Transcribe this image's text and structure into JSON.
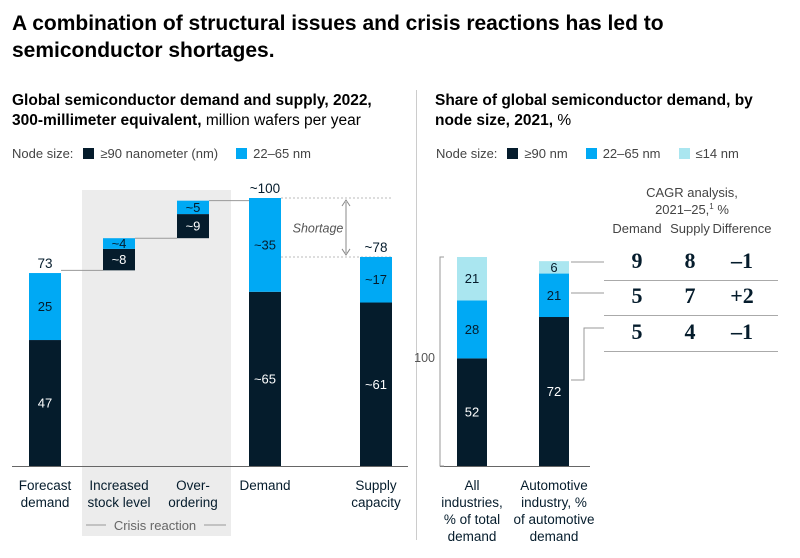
{
  "title": "A combination of structural issues and crisis reactions has led to semiconductor shortages.",
  "colors": {
    "dark": "#051c2c",
    "blue": "#00a9f4",
    "light": "#aae6f0",
    "shade": "#ececec",
    "gray": "#9a9a9a"
  },
  "chart_data": [
    {
      "type": "waterfall",
      "title_bold": "Global semiconductor demand and supply, 2022, 300-millimeter equivalent,",
      "title_light": " million wafers per year",
      "legend_label": "Node size:",
      "series": [
        {
          "name": "≥90 nanometer (nm)",
          "color": "#051c2c"
        },
        {
          "name": "22–65 nm",
          "color": "#00a9f4"
        }
      ],
      "ylim": [
        0,
        100
      ],
      "bars": [
        {
          "category": "Forecast demand",
          "base": 0,
          "segments": [
            {
              "value": 47,
              "label": "47"
            },
            {
              "value": 25,
              "label": "25"
            }
          ],
          "total_label": "73"
        },
        {
          "category": "Increased stock level",
          "base": 73,
          "segments": [
            {
              "value": 8,
              "label": "~8"
            },
            {
              "value": 4,
              "label": "~4"
            }
          ],
          "total_label": ""
        },
        {
          "category": "Over-ordering",
          "base": 85,
          "segments": [
            {
              "value": 9,
              "label": "~9"
            },
            {
              "value": 5,
              "label": "~5"
            }
          ],
          "total_label": ""
        },
        {
          "category": "Demand",
          "base": 0,
          "segments": [
            {
              "value": 65,
              "label": "~65"
            },
            {
              "value": 35,
              "label": "~35"
            }
          ],
          "total_label": "~100"
        },
        {
          "category": "Supply capacity",
          "base": 0,
          "segments": [
            {
              "value": 61,
              "label": "~61"
            },
            {
              "value": 17,
              "label": "~17"
            }
          ],
          "total_label": "~78"
        }
      ],
      "category_labels": [
        [
          "Forecast",
          "demand"
        ],
        [
          "Increased",
          "stock level"
        ],
        [
          "Over-",
          "ordering"
        ],
        [
          "Demand"
        ],
        [
          "Supply",
          "capacity"
        ]
      ],
      "crisis_label": "Crisis reaction",
      "shortage_label": "Shortage"
    },
    {
      "type": "stacked-bar",
      "title_bold": "Share of global semiconductor demand, by node size, 2021,",
      "title_light": " %",
      "legend_label": "Node size:",
      "series": [
        {
          "name": "≥90 nm",
          "color": "#051c2c",
          "values": [
            52,
            72
          ]
        },
        {
          "name": "22–65 nm",
          "color": "#00a9f4",
          "values": [
            28,
            21
          ]
        },
        {
          "name": "≤14 nm",
          "color": "#aae6f0",
          "values": [
            21,
            6
          ]
        }
      ],
      "category_labels": [
        [
          "All",
          "industries,",
          "% of total",
          "demand"
        ],
        [
          "Automotive",
          "industry, %",
          "of automotive",
          "demand"
        ]
      ],
      "bracket_label": "100",
      "cagr": {
        "title_line1": "CAGR analysis,",
        "title_line2": "2021–25,",
        "title_sup": "1",
        "title_unit": " %",
        "headers": [
          "Demand",
          "Supply",
          "Difference"
        ],
        "rows": [
          [
            "9",
            "8",
            "–1"
          ],
          [
            "5",
            "7",
            "+2"
          ],
          [
            "5",
            "4",
            "–1"
          ]
        ]
      }
    }
  ]
}
